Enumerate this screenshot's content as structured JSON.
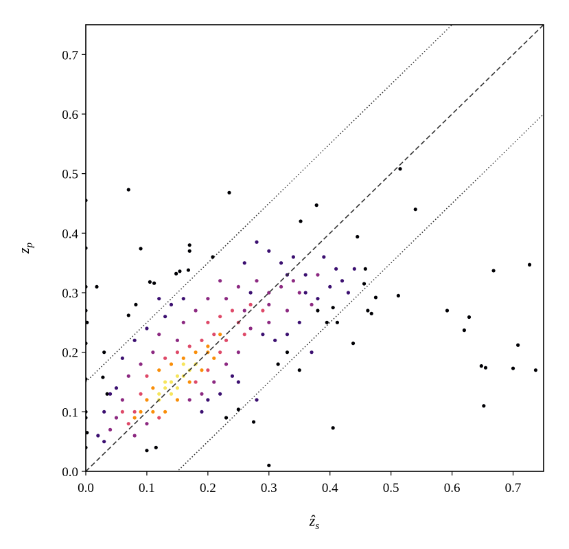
{
  "chart_data": {
    "type": "scatter",
    "x_label": {
      "base": "ẑ",
      "sub": "s"
    },
    "y_label": {
      "base": "z",
      "sub": "p"
    },
    "xlim": [
      0,
      0.75
    ],
    "ylim": [
      0,
      0.75
    ],
    "xticks": [
      {
        "value": 0,
        "label": "0.0"
      },
      0.1,
      0.2,
      0.3,
      0.4,
      0.5,
      0.6,
      0.7
    ],
    "yticks": [
      {
        "value": 0,
        "label": "0.0"
      },
      0.1,
      0.2,
      0.3,
      0.4,
      0.5,
      0.6,
      0.7
    ],
    "reference_lines": [
      {
        "slope": 1,
        "intercept": 0,
        "style": "dashed"
      },
      {
        "slope": 1,
        "intercept": 0.15,
        "style": "dotted"
      },
      {
        "slope": 1,
        "intercept": -0.15,
        "style": "dotted"
      }
    ],
    "series": [
      {
        "color": "#000004",
        "x": [
          0,
          0,
          0,
          0,
          0.002,
          0,
          0,
          0,
          0,
          0.002,
          0,
          0.018,
          0.03,
          0.028,
          0.07,
          0.09,
          0.082,
          0.07,
          0.105,
          0.112,
          0.235,
          0.17,
          0.17,
          0.168,
          0.148,
          0.154,
          0.208,
          0.378,
          0.352,
          0.515,
          0.54,
          0.445,
          0.405,
          0.412,
          0.438,
          0.456,
          0.458,
          0.462,
          0.468,
          0.475,
          0.512,
          0.405,
          0.3,
          0.275,
          0.25,
          0.23,
          0.1,
          0.115,
          0.035,
          0.592,
          0.62,
          0.628,
          0.648,
          0.655,
          0.652,
          0.668,
          0.7,
          0.708,
          0.727,
          0.737,
          0.38,
          0.395,
          0.33,
          0.315,
          0.35
        ],
        "y": [
          0.455,
          0.375,
          0.31,
          0.27,
          0.25,
          0.215,
          0.155,
          0.1,
          0.09,
          0.065,
          0.04,
          0.31,
          0.2,
          0.158,
          0.473,
          0.374,
          0.28,
          0.262,
          0.318,
          0.316,
          0.468,
          0.38,
          0.37,
          0.338,
          0.332,
          0.336,
          0.36,
          0.447,
          0.42,
          0.508,
          0.44,
          0.394,
          0.275,
          0.25,
          0.215,
          0.315,
          0.34,
          0.27,
          0.265,
          0.292,
          0.295,
          0.073,
          0.01,
          0.083,
          0.104,
          0.09,
          0.035,
          0.04,
          0.13,
          0.27,
          0.237,
          0.259,
          0.177,
          0.174,
          0.11,
          0.337,
          0.173,
          0.212,
          0.347,
          0.17,
          0.27,
          0.25,
          0.2,
          0.18,
          0.17
        ]
      },
      {
        "color": "#3b0f70",
        "x": [
          0.32,
          0.34,
          0.36,
          0.28,
          0.3,
          0.39,
          0.41,
          0.42,
          0.43,
          0.35,
          0.33,
          0.31,
          0.29,
          0.12,
          0.14,
          0.16,
          0.13,
          0.1,
          0.08,
          0.06,
          0.05,
          0.04,
          0.03,
          0.02,
          0.03,
          0.2,
          0.22,
          0.19,
          0.38,
          0.36,
          0.4,
          0.26,
          0.33,
          0.27,
          0.44,
          0.37,
          0.28,
          0.24,
          0.25
        ],
        "y": [
          0.35,
          0.36,
          0.33,
          0.385,
          0.37,
          0.36,
          0.34,
          0.32,
          0.3,
          0.25,
          0.23,
          0.22,
          0.23,
          0.29,
          0.28,
          0.29,
          0.26,
          0.24,
          0.22,
          0.19,
          0.14,
          0.13,
          0.1,
          0.06,
          0.05,
          0.12,
          0.13,
          0.1,
          0.29,
          0.3,
          0.31,
          0.35,
          0.33,
          0.3,
          0.34,
          0.2,
          0.12,
          0.16,
          0.15
        ]
      },
      {
        "color": "#8c2981",
        "x": [
          0.3,
          0.32,
          0.34,
          0.28,
          0.25,
          0.23,
          0.22,
          0.2,
          0.18,
          0.3,
          0.35,
          0.37,
          0.33,
          0.3,
          0.27,
          0.25,
          0.23,
          0.21,
          0.19,
          0.17,
          0.12,
          0.11,
          0.09,
          0.07,
          0.06,
          0.05,
          0.04,
          0.08,
          0.1,
          0.15,
          0.16,
          0.38,
          0.26
        ],
        "y": [
          0.3,
          0.31,
          0.32,
          0.32,
          0.31,
          0.29,
          0.32,
          0.29,
          0.27,
          0.28,
          0.3,
          0.28,
          0.27,
          0.25,
          0.24,
          0.2,
          0.18,
          0.15,
          0.13,
          0.12,
          0.23,
          0.2,
          0.18,
          0.16,
          0.12,
          0.09,
          0.07,
          0.06,
          0.08,
          0.22,
          0.25,
          0.33,
          0.27
        ]
      },
      {
        "color": "#de4968",
        "x": [
          0.2,
          0.22,
          0.24,
          0.25,
          0.27,
          0.21,
          0.19,
          0.17,
          0.15,
          0.13,
          0.23,
          0.22,
          0.2,
          0.18,
          0.08,
          0.07,
          0.09,
          0.1,
          0.06,
          0.12,
          0.29,
          0.26
        ],
        "y": [
          0.25,
          0.26,
          0.27,
          0.25,
          0.28,
          0.23,
          0.22,
          0.21,
          0.2,
          0.19,
          0.22,
          0.2,
          0.17,
          0.15,
          0.1,
          0.08,
          0.13,
          0.16,
          0.1,
          0.09,
          0.27,
          0.23
        ]
      },
      {
        "color": "#f98e09",
        "x": [
          0.1,
          0.11,
          0.12,
          0.14,
          0.16,
          0.18,
          0.2,
          0.21,
          0.19,
          0.17,
          0.15,
          0.13,
          0.11,
          0.09,
          0.08,
          0.22,
          0.2
        ],
        "y": [
          0.12,
          0.14,
          0.17,
          0.18,
          0.19,
          0.2,
          0.21,
          0.19,
          0.17,
          0.15,
          0.12,
          0.1,
          0.1,
          0.1,
          0.09,
          0.23,
          0.2
        ]
      },
      {
        "color": "#f6e55c",
        "x": [
          0.12,
          0.13,
          0.14,
          0.15,
          0.16,
          0.17,
          0.14,
          0.15,
          0.13,
          0.16,
          0.18,
          0.12
        ],
        "y": [
          0.13,
          0.14,
          0.15,
          0.16,
          0.16,
          0.17,
          0.13,
          0.14,
          0.15,
          0.18,
          0.18,
          0.12
        ]
      }
    ]
  }
}
